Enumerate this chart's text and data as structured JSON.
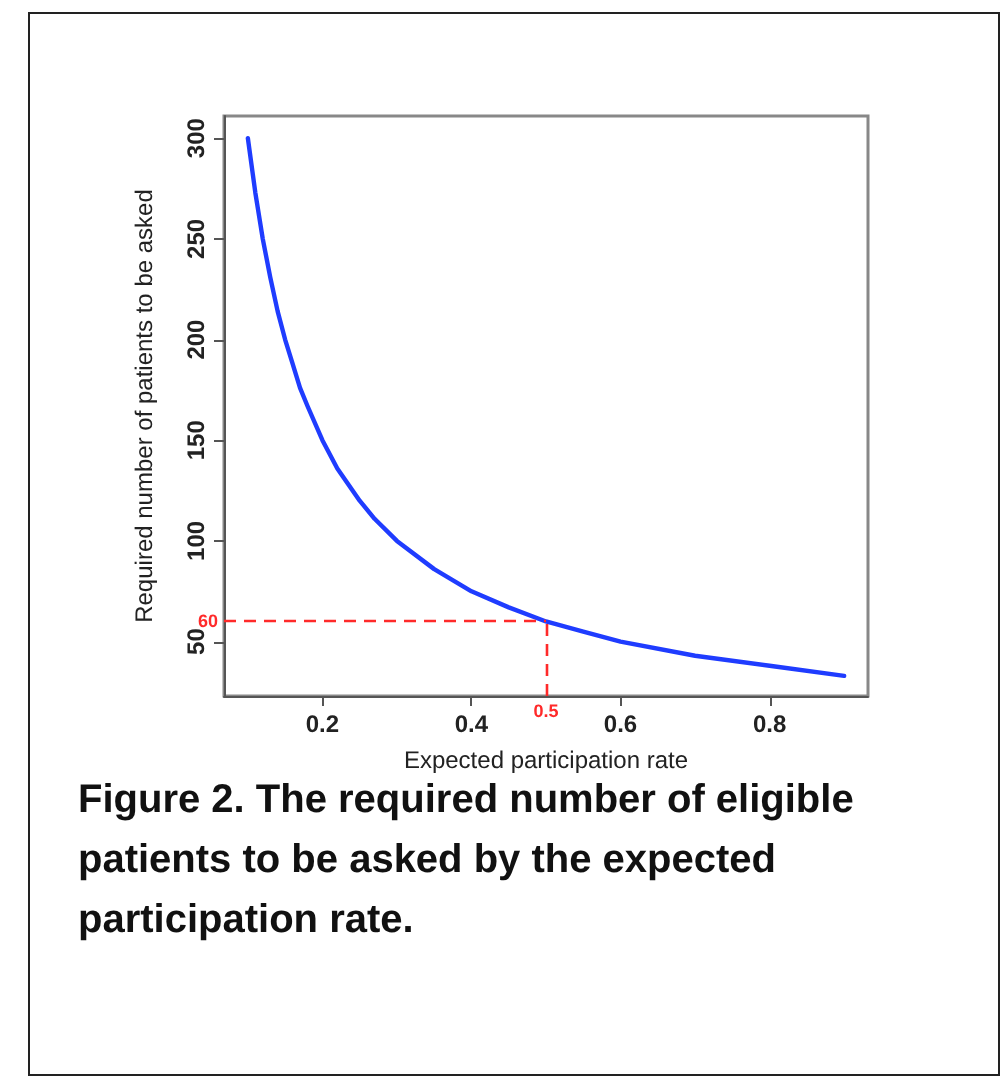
{
  "chart_data": {
    "type": "line",
    "title": "Figure 2. The required number of eligible patients to be asked by the expected participation rate.",
    "xlabel": "Expected participation rate",
    "ylabel": "Required number of patients to be asked",
    "x": [
      0.1,
      0.11,
      0.12,
      0.13,
      0.14,
      0.15,
      0.16,
      0.17,
      0.18,
      0.2,
      0.22,
      0.25,
      0.27,
      0.3,
      0.35,
      0.4,
      0.45,
      0.5,
      0.55,
      0.6,
      0.7,
      0.8,
      0.9
    ],
    "series": [
      {
        "color": "#1f3cff",
        "values": [
          300,
          273,
          250,
          231,
          214,
          200,
          188,
          176,
          167,
          150,
          136,
          120,
          111,
          100,
          86,
          75,
          67,
          60,
          55,
          50,
          43,
          38,
          33
        ]
      }
    ],
    "xlim": [
      0.068,
      0.932
    ],
    "xticks": [
      0.2,
      0.4,
      0.6,
      0.8
    ],
    "ylim": [
      23,
      311
    ],
    "yticks": [
      50,
      100,
      150,
      200,
      250,
      300
    ],
    "ref_lines": [
      {
        "axis": "x",
        "value": 0.5,
        "label": "0.5",
        "color": "#ff2a2a",
        "line_style": "dashed"
      },
      {
        "axis": "y",
        "value": 60,
        "label": "60",
        "color": "#ff2a2a",
        "line_style": "dashed"
      }
    ],
    "grid": false,
    "marker": "none",
    "line_style": "solid"
  }
}
